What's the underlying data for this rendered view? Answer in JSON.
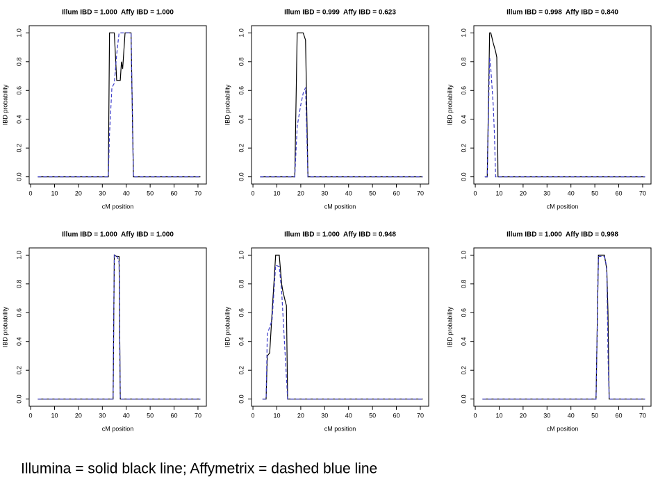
{
  "chart_data": [
    {
      "type": "line",
      "title": "Illum IBD = 1.000  Affy IBD = 1.000",
      "xlabel": "cM position",
      "ylabel": "IBD probability",
      "x": [
        3,
        32.5,
        33,
        34,
        35,
        36,
        37,
        37.5,
        38,
        38.5,
        39.5,
        42,
        43,
        71
      ],
      "series": [
        {
          "name": "Illumina",
          "color": "#000000",
          "line_style": "solid",
          "values": [
            0,
            0,
            1,
            1,
            1,
            0.67,
            0.67,
            0.67,
            0.8,
            0.75,
            1,
            1,
            0,
            0
          ]
        },
        {
          "name": "Affymetrix",
          "color": "#3a3ac8",
          "line_style": "dashed",
          "values": [
            0,
            0,
            0.3,
            0.62,
            0.65,
            0.85,
            1,
            1,
            1,
            1,
            1,
            1,
            0,
            0
          ]
        }
      ],
      "xlim": [
        -0.6,
        73.5
      ],
      "ylim": [
        -0.05,
        1.05
      ],
      "xticks": [
        0,
        10,
        20,
        30,
        40,
        50,
        60,
        70
      ],
      "yticks": [
        {
          "value": 0,
          "label": "0.0"
        },
        0.2,
        0.4,
        0.6,
        0.8,
        {
          "value": 1,
          "label": "1.0"
        }
      ]
    },
    {
      "type": "line",
      "title": "Illum IBD = 0.999  Affy IBD = 0.623",
      "xlabel": "cM position",
      "ylabel": "IBD probability",
      "x": [
        3,
        17.5,
        18.5,
        20,
        21,
        22,
        23,
        71
      ],
      "series": [
        {
          "name": "Illumina",
          "color": "#000000",
          "line_style": "solid",
          "values": [
            0,
            0,
            1,
            1,
            1,
            0.95,
            0,
            0
          ]
        },
        {
          "name": "Affymetrix",
          "color": "#3a3ac8",
          "line_style": "dashed",
          "values": [
            0,
            0,
            0.35,
            0.5,
            0.58,
            0.62,
            0,
            0
          ]
        }
      ],
      "xlim": [
        -0.6,
        73.5
      ],
      "ylim": [
        -0.05,
        1.05
      ],
      "xticks": [
        0,
        10,
        20,
        30,
        40,
        50,
        60,
        70
      ],
      "yticks": [
        {
          "value": 0,
          "label": "0.0"
        },
        0.2,
        0.4,
        0.6,
        0.8,
        {
          "value": 1,
          "label": "1.0"
        }
      ]
    },
    {
      "type": "line",
      "title": "Illum IBD = 0.998  Affy IBD = 0.840",
      "xlabel": "cM position",
      "ylabel": "IBD probability",
      "x": [
        4,
        5,
        6,
        6.5,
        7.5,
        8,
        8.5,
        9,
        9.5,
        71
      ],
      "series": [
        {
          "name": "Illumina",
          "color": "#000000",
          "line_style": "solid",
          "values": [
            0,
            0,
            1,
            1,
            0.93,
            0.9,
            0.87,
            0.83,
            0,
            0
          ]
        },
        {
          "name": "Affymetrix",
          "color": "#3a3ac8",
          "line_style": "dashed",
          "values": [
            0,
            0,
            0.83,
            0.75,
            0.5,
            0.3,
            0,
            0,
            0,
            0
          ]
        }
      ],
      "xlim": [
        -0.6,
        73.5
      ],
      "ylim": [
        -0.05,
        1.05
      ],
      "xticks": [
        0,
        10,
        20,
        30,
        40,
        50,
        60,
        70
      ],
      "yticks": [
        {
          "value": 0,
          "label": "0.0"
        },
        0.2,
        0.4,
        0.6,
        0.8,
        {
          "value": 1,
          "label": "1.0"
        }
      ]
    },
    {
      "type": "line",
      "title": "Illum IBD = 1.000  Affy IBD = 1.000",
      "xlabel": "cM position",
      "ylabel": "IBD probability",
      "x": [
        3,
        34.5,
        35,
        36,
        37,
        37.5,
        71
      ],
      "series": [
        {
          "name": "Illumina",
          "color": "#000000",
          "line_style": "solid",
          "values": [
            0,
            0,
            1,
            0.99,
            0.99,
            0,
            0
          ]
        },
        {
          "name": "Affymetrix",
          "color": "#3a3ac8",
          "line_style": "dashed",
          "values": [
            0,
            0,
            1,
            1,
            0.95,
            0,
            0
          ]
        }
      ],
      "xlim": [
        -0.6,
        73.5
      ],
      "ylim": [
        -0.05,
        1.05
      ],
      "xticks": [
        0,
        10,
        20,
        30,
        40,
        50,
        60,
        70
      ],
      "yticks": [
        {
          "value": 0,
          "label": "0.0"
        },
        0.2,
        0.4,
        0.6,
        0.8,
        {
          "value": 1,
          "label": "1.0"
        }
      ]
    },
    {
      "type": "line",
      "title": "Illum IBD = 1.000  Affy IBD = 0.948",
      "xlabel": "cM position",
      "ylabel": "IBD probability",
      "x": [
        4,
        5.5,
        6,
        7,
        8,
        9.5,
        11,
        12,
        12.5,
        13.5,
        14,
        14.5,
        71
      ],
      "series": [
        {
          "name": "Illumina",
          "color": "#000000",
          "line_style": "solid",
          "values": [
            0,
            0,
            0.3,
            0.32,
            0.6,
            1,
            1,
            0.8,
            0.75,
            0.68,
            0.65,
            0,
            0
          ]
        },
        {
          "name": "Affymetrix",
          "color": "#3a3ac8",
          "line_style": "dashed",
          "values": [
            0,
            0,
            0.45,
            0.5,
            0.55,
            0.93,
            0.92,
            0.75,
            0.6,
            0.3,
            0.15,
            0,
            0
          ]
        }
      ],
      "xlim": [
        -0.6,
        73.5
      ],
      "ylim": [
        -0.05,
        1.05
      ],
      "xticks": [
        0,
        10,
        20,
        30,
        40,
        50,
        60,
        70
      ],
      "yticks": [
        {
          "value": 0,
          "label": "0.0"
        },
        0.2,
        0.4,
        0.6,
        0.8,
        {
          "value": 1,
          "label": "1.0"
        }
      ]
    },
    {
      "type": "line",
      "title": "Illum IBD = 1.000  Affy IBD = 0.998",
      "xlabel": "cM position",
      "ylabel": "IBD probability",
      "x": [
        3,
        50.5,
        51.5,
        54,
        55,
        55.5,
        56,
        71
      ],
      "series": [
        {
          "name": "Illumina",
          "color": "#000000",
          "line_style": "solid",
          "values": [
            0,
            0,
            1,
            1,
            0.9,
            0.6,
            0,
            0
          ]
        },
        {
          "name": "Affymetrix",
          "color": "#3a3ac8",
          "line_style": "dashed",
          "values": [
            0,
            0,
            0.99,
            0.99,
            0.92,
            0.3,
            0,
            0
          ]
        }
      ],
      "xlim": [
        -0.6,
        73.5
      ],
      "ylim": [
        -0.05,
        1.05
      ],
      "xticks": [
        0,
        10,
        20,
        30,
        40,
        50,
        60,
        70
      ],
      "yticks": [
        {
          "value": 0,
          "label": "0.0"
        },
        0.2,
        0.4,
        0.6,
        0.8,
        {
          "value": 1,
          "label": "1.0"
        }
      ]
    }
  ],
  "caption": "Illumina = solid black line; Affymetrix = dashed blue line"
}
